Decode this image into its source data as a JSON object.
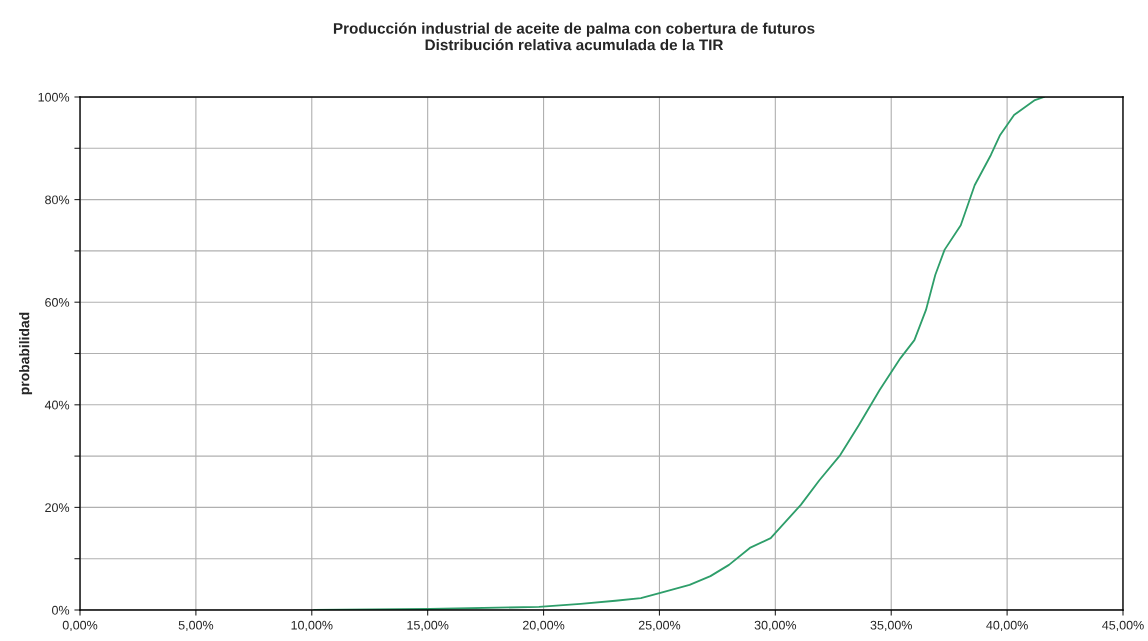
{
  "chart_data": {
    "type": "line",
    "title": "Producción industrial de aceite de palma con cobertura de futuros\nDistribución relativa acumulada de la TIR",
    "ylabel": "probabilidad",
    "x": [
      10.1,
      15.1,
      19.8,
      21.6,
      23.1,
      24.2,
      25.0,
      26.3,
      27.2,
      28.0,
      28.9,
      29.8,
      30.2,
      31.1,
      31.9,
      32.8,
      33.6,
      34.5,
      35.4,
      36.0,
      36.5,
      36.9,
      37.3,
      38.0,
      38.6,
      39.3,
      39.7,
      40.3,
      41.2,
      41.6
    ],
    "series": [
      {
        "color": "#2e9e6a",
        "values": [
          0,
          0.2,
          0.6,
          1.2,
          1.8,
          2.3,
          3.3,
          4.9,
          6.6,
          8.8,
          12.1,
          14.0,
          16,
          20.5,
          25.3,
          30.2,
          36,
          42.9,
          49.1,
          52.6,
          58.5,
          65.3,
          70.2,
          75,
          82.8,
          88.7,
          92.6,
          96.5,
          99.4,
          100
        ]
      }
    ],
    "xlim": [
      0,
      45
    ],
    "xticks": [
      {
        "value": 0,
        "label": "0,00%"
      },
      {
        "value": 5,
        "label": "5,00%"
      },
      {
        "value": 10,
        "label": "10,00%"
      },
      {
        "value": 15,
        "label": "15,00%"
      },
      {
        "value": 20,
        "label": "20,00%"
      },
      {
        "value": 25,
        "label": "25,00%"
      },
      {
        "value": 30,
        "label": "30,00%"
      },
      {
        "value": 35,
        "label": "35,00%"
      },
      {
        "value": 40,
        "label": "40,00%"
      },
      {
        "value": 45,
        "label": "45,00%"
      }
    ],
    "ylim": [
      0,
      100
    ],
    "yticks": [
      {
        "value": 0,
        "label": "0%"
      },
      {
        "value": 10,
        "label": null
      },
      {
        "value": 20,
        "label": "20%"
      },
      {
        "value": 30,
        "label": null
      },
      {
        "value": 40,
        "label": "40%"
      },
      {
        "value": 50,
        "label": null
      },
      {
        "value": 60,
        "label": "60%"
      },
      {
        "value": 70,
        "label": null
      },
      {
        "value": 80,
        "label": "80%"
      },
      {
        "value": 90,
        "label": null
      },
      {
        "value": 100,
        "label": "100%"
      }
    ],
    "grid": true,
    "legend": false,
    "line_style": "solid",
    "marker": "none"
  }
}
